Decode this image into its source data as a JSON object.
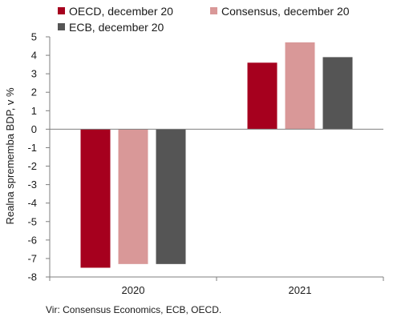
{
  "chart_data": {
    "type": "bar",
    "categories": [
      "2020",
      "2021"
    ],
    "series": [
      {
        "name": "OECD, december 20",
        "color": "#a6001e",
        "values": [
          -7.5,
          3.6
        ]
      },
      {
        "name": "Consensus, december 20",
        "color": "#d99898",
        "values": [
          -7.3,
          4.7
        ]
      },
      {
        "name": "ECB, december 20",
        "color": "#555555",
        "values": [
          -7.3,
          3.9
        ]
      }
    ],
    "ylabel": "Realna sprememba BDP, v %",
    "ylim": [
      -8,
      5
    ],
    "yticks": [
      5,
      4,
      3,
      2,
      1,
      0,
      -1,
      -2,
      -3,
      -4,
      -5,
      -6,
      -7,
      -8
    ],
    "grid": false,
    "legend_position": "top",
    "source": "Vir: Consensus Economics, ECB, OECD."
  }
}
